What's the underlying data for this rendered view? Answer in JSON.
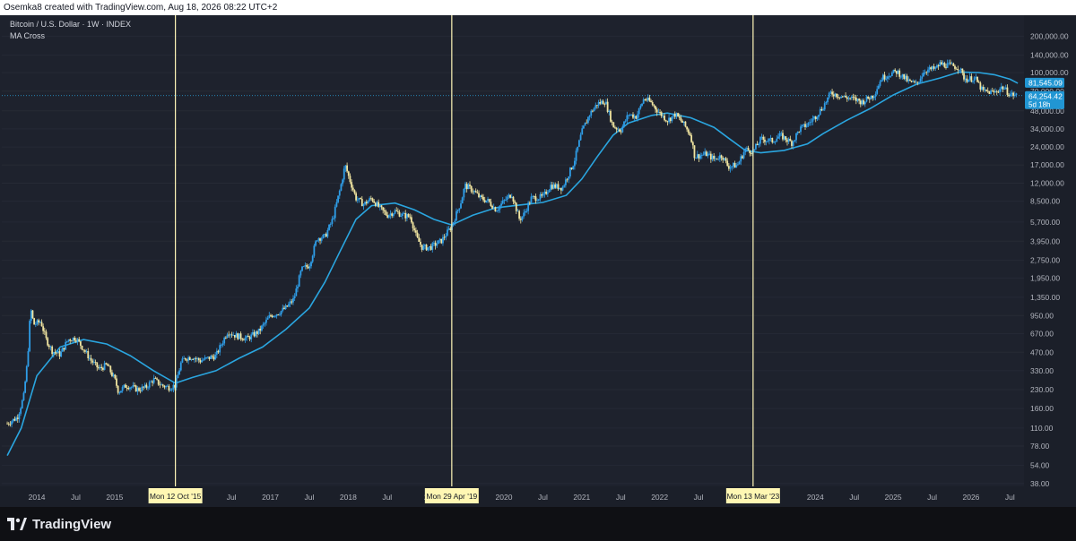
{
  "header": {
    "attribution": "Osemka8 created with TradingView.com, Aug 18, 2026 08:22 UTC+2"
  },
  "legend": {
    "symbol": "Bitcoin / U.S. Dollar · 1W · INDEX",
    "indicator": "MA Cross"
  },
  "brand": {
    "name": "TradingView"
  },
  "colors": {
    "background": "#1e222d",
    "candle_up": "#2f9ee8",
    "candle_down": "#f0e4a0",
    "ma_line": "#2aa5df",
    "vline": "#fff6b8",
    "axis_text": "#b2b5be"
  },
  "chart_data": {
    "type": "candlestick",
    "scale": "log",
    "ylim": [
      36,
      280000
    ],
    "xlim": [
      "2013-08",
      "2026-09"
    ],
    "y_ticks": [
      "38.00",
      "54.00",
      "78.00",
      "110.00",
      "160.00",
      "230.00",
      "330.00",
      "470.00",
      "670.00",
      "950.00",
      "1,350.00",
      "1,950.00",
      "2,750.00",
      "3,950.00",
      "5,700.00",
      "8,500.00",
      "12,000.00",
      "17,000.00",
      "24,000.00",
      "34,000.00",
      "48,000.00",
      "70,000.00",
      "100,000.00",
      "140,000.00",
      "200,000.00"
    ],
    "x_ticks": [
      {
        "label": "2014",
        "t": 2014.0
      },
      {
        "label": "Jul",
        "t": 2014.5
      },
      {
        "label": "2015",
        "t": 2015.0
      },
      {
        "label": "Jul",
        "t": 2016.5
      },
      {
        "label": "2017",
        "t": 2017.0
      },
      {
        "label": "Jul",
        "t": 2017.5
      },
      {
        "label": "2018",
        "t": 2018.0
      },
      {
        "label": "Jul",
        "t": 2018.5
      },
      {
        "label": "2",
        "t": 2019.0
      },
      {
        "label": "2020",
        "t": 2020.0
      },
      {
        "label": "Jul",
        "t": 2020.5
      },
      {
        "label": "2021",
        "t": 2021.0
      },
      {
        "label": "Jul",
        "t": 2021.5
      },
      {
        "label": "2022",
        "t": 2022.0
      },
      {
        "label": "Jul",
        "t": 2022.5
      },
      {
        "label": "2024",
        "t": 2024.0
      },
      {
        "label": "Jul",
        "t": 2024.5
      },
      {
        "label": "2025",
        "t": 2025.0
      },
      {
        "label": "Jul",
        "t": 2025.5
      },
      {
        "label": "2026",
        "t": 2026.0
      },
      {
        "label": "Jul",
        "t": 2026.5
      }
    ],
    "markers": [
      {
        "label": "Mon 12 Oct '15",
        "t": 2015.78
      },
      {
        "label": "Mon 29 Apr '19",
        "t": 2019.33
      },
      {
        "label": "Mon 13 Mar '23",
        "t": 2023.2
      }
    ],
    "price_labels": [
      {
        "value": 81545.09,
        "text": "81,545.09"
      },
      {
        "value": 64254.42,
        "text": "64,254.42",
        "sub": "5d 18h"
      }
    ],
    "close_path": [
      [
        2013.62,
        120
      ],
      [
        2013.75,
        135
      ],
      [
        2013.83,
        200
      ],
      [
        2013.88,
        400
      ],
      [
        2013.92,
        1100
      ],
      [
        2013.96,
        800
      ],
      [
        2014.05,
        850
      ],
      [
        2014.12,
        600
      ],
      [
        2014.2,
        480
      ],
      [
        2014.3,
        450
      ],
      [
        2014.4,
        600
      ],
      [
        2014.5,
        620
      ],
      [
        2014.6,
        500
      ],
      [
        2014.7,
        400
      ],
      [
        2014.8,
        340
      ],
      [
        2014.9,
        370
      ],
      [
        2015.0,
        280
      ],
      [
        2015.05,
        220
      ],
      [
        2015.15,
        250
      ],
      [
        2015.3,
        230
      ],
      [
        2015.4,
        240
      ],
      [
        2015.5,
        280
      ],
      [
        2015.6,
        250
      ],
      [
        2015.7,
        240
      ],
      [
        2015.78,
        250
      ],
      [
        2015.85,
        380
      ],
      [
        2015.9,
        420
      ],
      [
        2016.0,
        430
      ],
      [
        2016.1,
        400
      ],
      [
        2016.3,
        440
      ],
      [
        2016.45,
        700
      ],
      [
        2016.55,
        650
      ],
      [
        2016.7,
        610
      ],
      [
        2016.85,
        700
      ],
      [
        2017.0,
        950
      ],
      [
        2017.1,
        1000
      ],
      [
        2017.2,
        1100
      ],
      [
        2017.3,
        1300
      ],
      [
        2017.4,
        2300
      ],
      [
        2017.5,
        2500
      ],
      [
        2017.6,
        4200
      ],
      [
        2017.7,
        4300
      ],
      [
        2017.8,
        6000
      ],
      [
        2017.9,
        11000
      ],
      [
        2017.96,
        17000
      ],
      [
        2018.0,
        14000
      ],
      [
        2018.1,
        9000
      ],
      [
        2018.2,
        8000
      ],
      [
        2018.3,
        9000
      ],
      [
        2018.4,
        7500
      ],
      [
        2018.5,
        6500
      ],
      [
        2018.6,
        7000
      ],
      [
        2018.7,
        6500
      ],
      [
        2018.8,
        6300
      ],
      [
        2018.88,
        4200
      ],
      [
        2018.95,
        3500
      ],
      [
        2019.05,
        3500
      ],
      [
        2019.2,
        4000
      ],
      [
        2019.33,
        5300
      ],
      [
        2019.45,
        8500
      ],
      [
        2019.5,
        11500
      ],
      [
        2019.6,
        10500
      ],
      [
        2019.7,
        9000
      ],
      [
        2019.8,
        8500
      ],
      [
        2019.9,
        7200
      ],
      [
        2020.0,
        8500
      ],
      [
        2020.1,
        9800
      ],
      [
        2020.2,
        6000
      ],
      [
        2020.25,
        6500
      ],
      [
        2020.35,
        9000
      ],
      [
        2020.5,
        9200
      ],
      [
        2020.6,
        11500
      ],
      [
        2020.75,
        11000
      ],
      [
        2020.9,
        18000
      ],
      [
        2021.0,
        32000
      ],
      [
        2021.1,
        45000
      ],
      [
        2021.2,
        55000
      ],
      [
        2021.3,
        58000
      ],
      [
        2021.4,
        36000
      ],
      [
        2021.5,
        33000
      ],
      [
        2021.6,
        45000
      ],
      [
        2021.7,
        43000
      ],
      [
        2021.8,
        61000
      ],
      [
        2021.88,
        57000
      ],
      [
        2022.0,
        46000
      ],
      [
        2022.1,
        40000
      ],
      [
        2022.2,
        45000
      ],
      [
        2022.3,
        38000
      ],
      [
        2022.4,
        30000
      ],
      [
        2022.45,
        20000
      ],
      [
        2022.6,
        21000
      ],
      [
        2022.7,
        19000
      ],
      [
        2022.8,
        20500
      ],
      [
        2022.88,
        16500
      ],
      [
        2023.0,
        17000
      ],
      [
        2023.1,
        23000
      ],
      [
        2023.2,
        22000
      ],
      [
        2023.3,
        28000
      ],
      [
        2023.45,
        27000
      ],
      [
        2023.55,
        30000
      ],
      [
        2023.7,
        26000
      ],
      [
        2023.8,
        34000
      ],
      [
        2023.9,
        37000
      ],
      [
        2024.0,
        43000
      ],
      [
        2024.1,
        52000
      ],
      [
        2024.2,
        68000
      ],
      [
        2024.35,
        63000
      ],
      [
        2024.5,
        60000
      ],
      [
        2024.6,
        57000
      ],
      [
        2024.75,
        65000
      ],
      [
        2024.85,
        90000
      ],
      [
        2024.95,
        97000
      ],
      [
        2025.05,
        102000
      ],
      [
        2025.2,
        84000
      ],
      [
        2025.3,
        80000
      ],
      [
        2025.4,
        104000
      ],
      [
        2025.55,
        108000
      ],
      [
        2025.6,
        118000
      ],
      [
        2025.75,
        114000
      ],
      [
        2025.85,
        110000
      ],
      [
        2025.9,
        92000
      ],
      [
        2025.95,
        88000
      ],
      [
        2026.05,
        90000
      ],
      [
        2026.15,
        70000
      ],
      [
        2026.3,
        68000
      ],
      [
        2026.4,
        76000
      ],
      [
        2026.5,
        66000
      ],
      [
        2026.6,
        64254
      ]
    ],
    "ma_path": [
      [
        2013.62,
        65
      ],
      [
        2013.8,
        110
      ],
      [
        2014.0,
        300
      ],
      [
        2014.3,
        520
      ],
      [
        2014.6,
        600
      ],
      [
        2014.9,
        550
      ],
      [
        2015.2,
        440
      ],
      [
        2015.5,
        330
      ],
      [
        2015.78,
        260
      ],
      [
        2016.0,
        290
      ],
      [
        2016.3,
        330
      ],
      [
        2016.6,
        420
      ],
      [
        2016.9,
        520
      ],
      [
        2017.2,
        730
      ],
      [
        2017.5,
        1100
      ],
      [
        2017.7,
        1800
      ],
      [
        2017.9,
        3300
      ],
      [
        2018.1,
        6000
      ],
      [
        2018.3,
        7800
      ],
      [
        2018.6,
        8200
      ],
      [
        2018.85,
        7200
      ],
      [
        2019.1,
        6000
      ],
      [
        2019.33,
        5400
      ],
      [
        2019.6,
        6500
      ],
      [
        2019.9,
        7500
      ],
      [
        2020.2,
        7900
      ],
      [
        2020.5,
        8300
      ],
      [
        2020.8,
        9500
      ],
      [
        2021.0,
        13000
      ],
      [
        2021.2,
        20000
      ],
      [
        2021.4,
        30000
      ],
      [
        2021.6,
        38000
      ],
      [
        2021.9,
        44000
      ],
      [
        2022.1,
        46000
      ],
      [
        2022.4,
        42000
      ],
      [
        2022.7,
        35000
      ],
      [
        2022.9,
        28000
      ],
      [
        2023.1,
        22500
      ],
      [
        2023.3,
        21500
      ],
      [
        2023.6,
        22500
      ],
      [
        2023.9,
        25500
      ],
      [
        2024.1,
        31000
      ],
      [
        2024.4,
        40000
      ],
      [
        2024.7,
        50000
      ],
      [
        2025.0,
        65000
      ],
      [
        2025.3,
        80000
      ],
      [
        2025.6,
        90000
      ],
      [
        2025.85,
        101000
      ],
      [
        2026.1,
        100000
      ],
      [
        2026.3,
        96000
      ],
      [
        2026.5,
        88000
      ],
      [
        2026.6,
        81545
      ]
    ]
  }
}
